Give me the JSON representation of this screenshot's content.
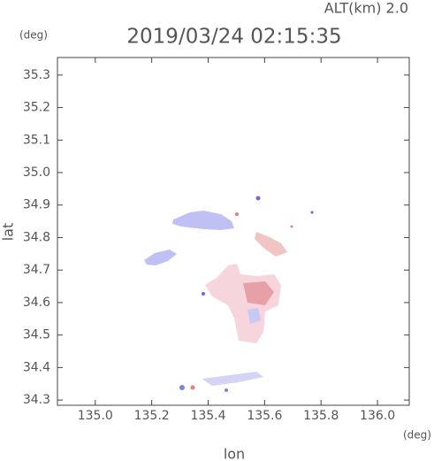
{
  "chart_data": {
    "type": "radar",
    "title": "2019/03/24 02:15:35",
    "subtitle": "ALT(km) 2.0",
    "x_label": "lon",
    "y_label": "lat",
    "x_unit": "(deg)",
    "y_unit": "(deg)",
    "xlim": [
      134.866,
      136.1125
    ],
    "ylim": [
      34.284,
      35.354
    ],
    "xticks": [
      {
        "value": 135.0,
        "label": "135.0"
      },
      135.2,
      135.4,
      135.6,
      135.8,
      {
        "value": 136.0,
        "label": "136.0"
      }
    ],
    "yticks": [
      35.3,
      35.2,
      35.1,
      {
        "value": 35.0,
        "label": "35.0"
      },
      34.9,
      34.8,
      34.7,
      34.6,
      34.5,
      34.4,
      34.3
    ]
  }
}
